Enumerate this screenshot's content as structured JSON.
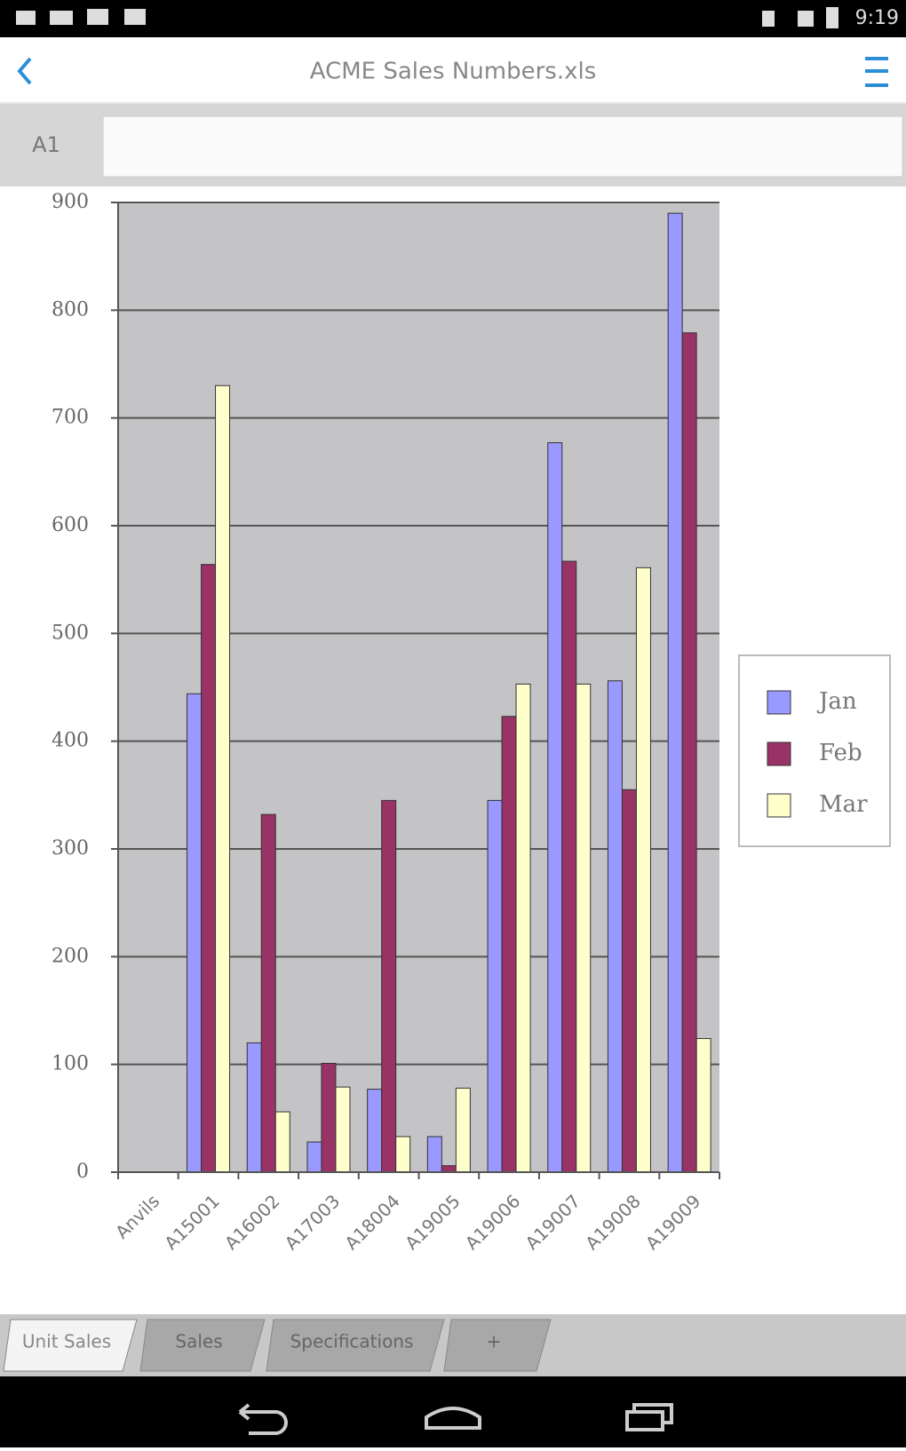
{
  "status_bar": {
    "time": "9:19"
  },
  "toolbar": {
    "title": "ACME Sales Numbers.xls"
  },
  "formula_bar": {
    "cell": "A1"
  },
  "tabs": [
    "Unit Sales",
    "Sales",
    "Specifications",
    "+"
  ],
  "chart_data": {
    "type": "bar",
    "categories": [
      "Anvils",
      "A15001",
      "A16002",
      "A17003",
      "A18004",
      "A19005",
      "A19006",
      "A19007",
      "A19008",
      "A19009"
    ],
    "series": [
      {
        "name": "Jan",
        "color": "#9999ff",
        "values": [
          0,
          444,
          120,
          28,
          77,
          33,
          345,
          677,
          456,
          890
        ]
      },
      {
        "name": "Feb",
        "color": "#993366",
        "values": [
          0,
          564,
          332,
          101,
          345,
          6,
          423,
          567,
          355,
          779
        ]
      },
      {
        "name": "Mar",
        "color": "#ffffcc",
        "values": [
          0,
          730,
          56,
          79,
          33,
          78,
          453,
          453,
          561,
          124
        ]
      }
    ],
    "ylim": [
      0,
      900
    ],
    "yticks": [
      0,
      100,
      200,
      300,
      400,
      500,
      600,
      700,
      800,
      900
    ],
    "grid": true,
    "legend": "right"
  }
}
